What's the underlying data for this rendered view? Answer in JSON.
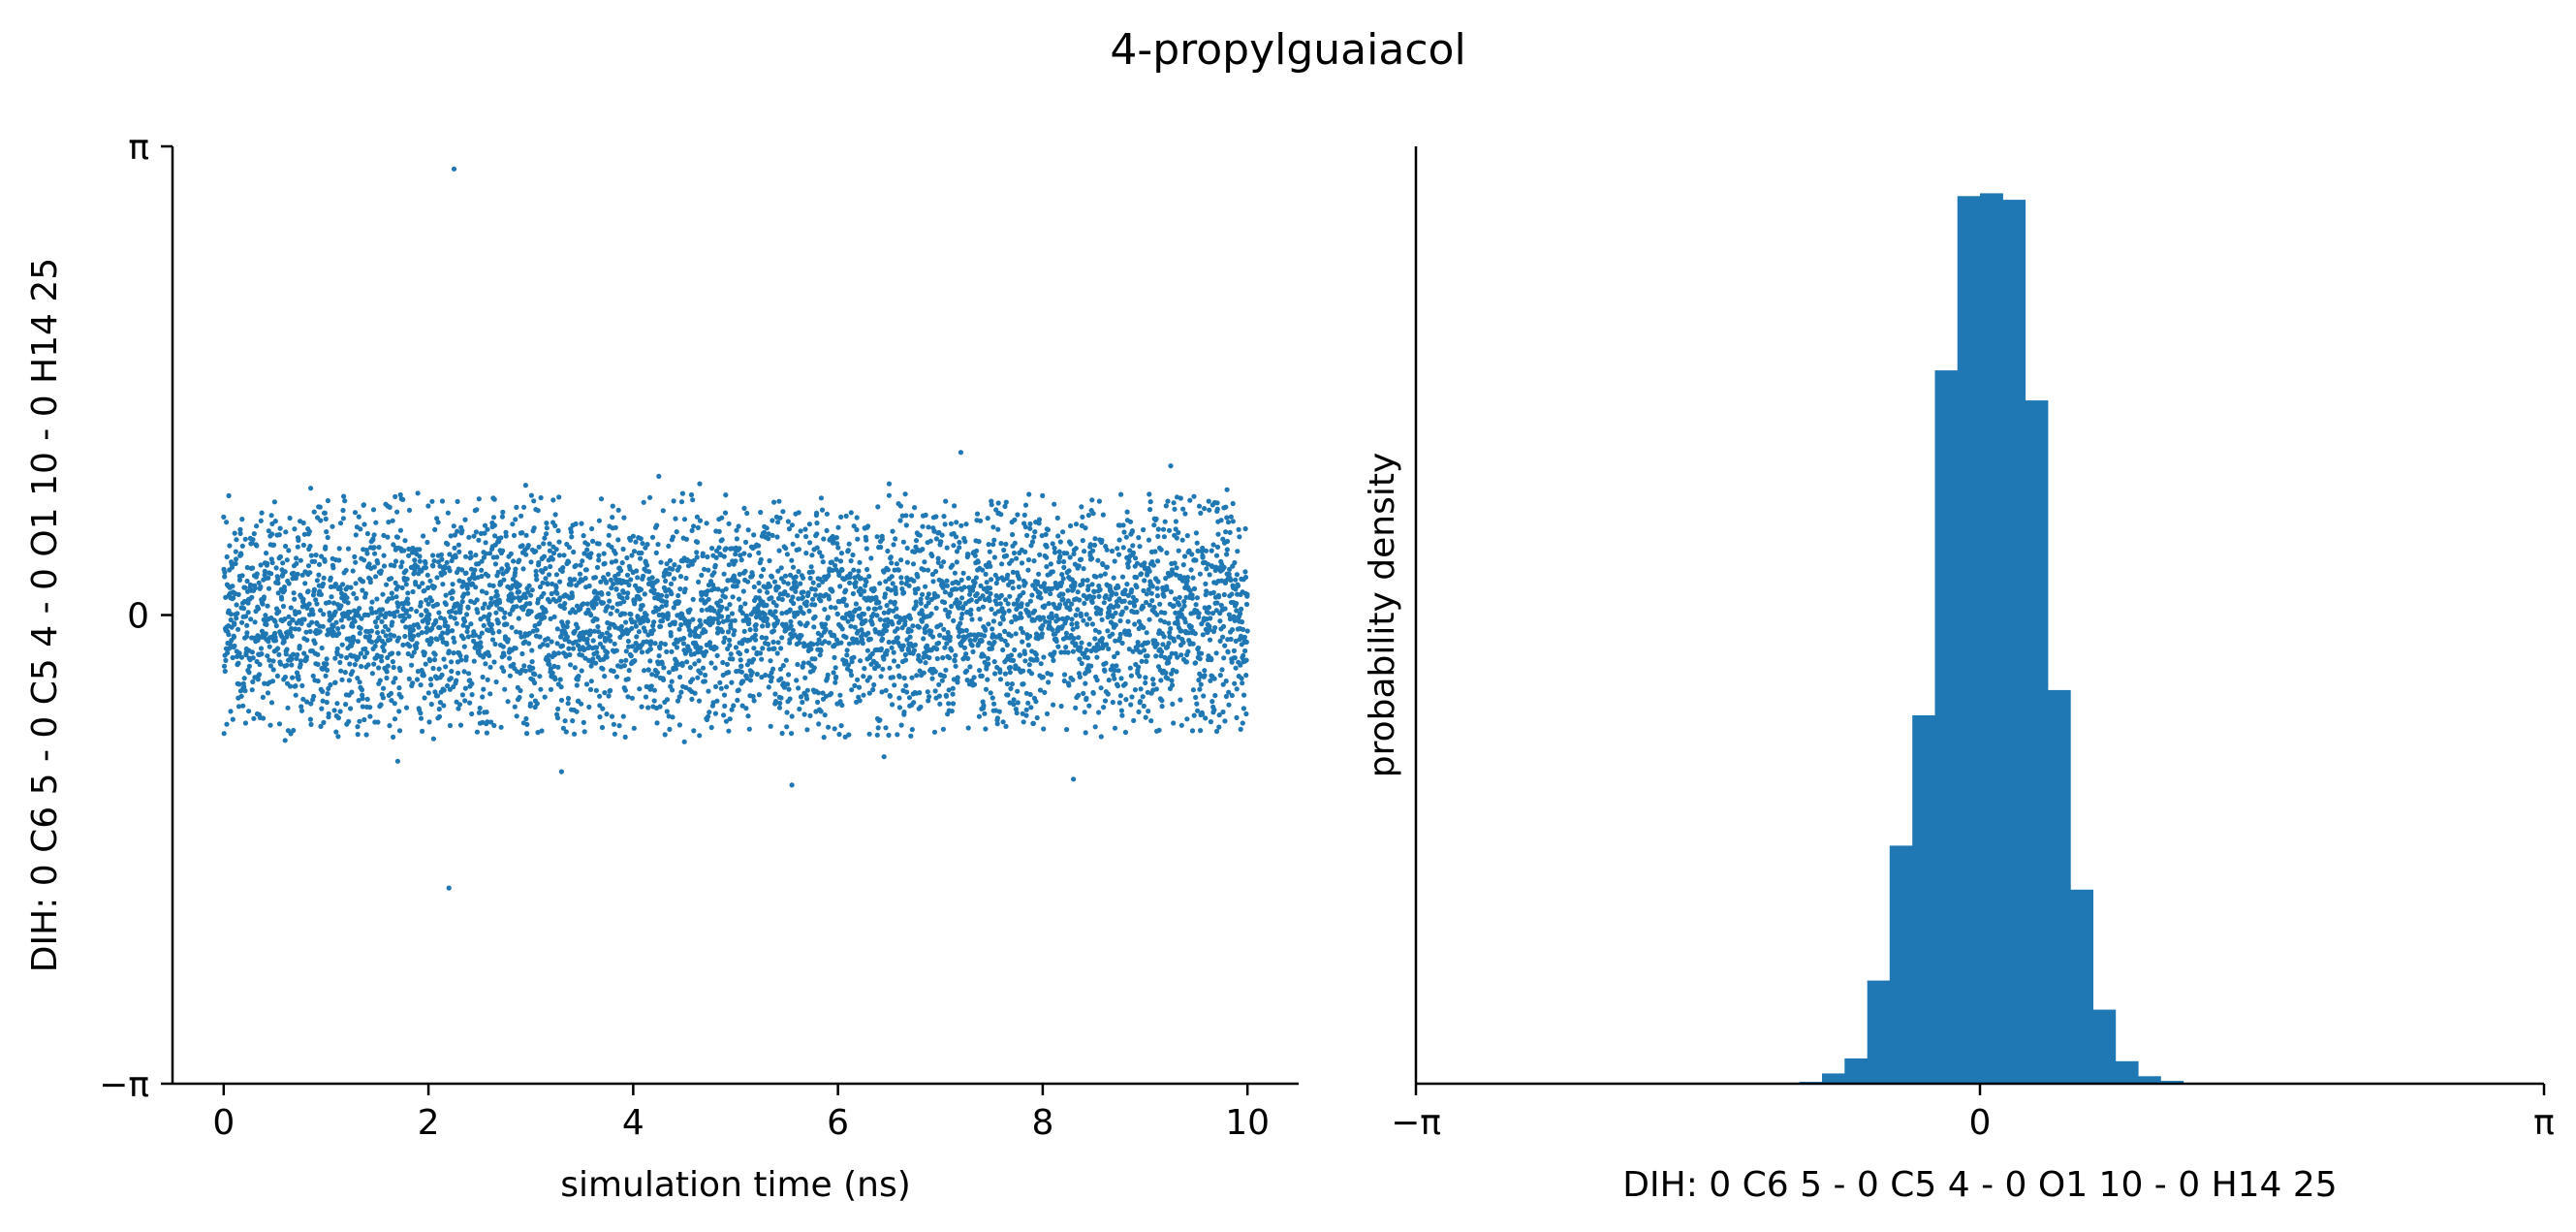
{
  "title": "4-propylguaiacol",
  "colors": {
    "series": "#1f77b4",
    "axis": "#000000"
  },
  "chart_data": [
    {
      "type": "scatter",
      "xlabel": "simulation time (ns)",
      "ylabel": "DIH:  0 C6 5 -  0 C5 4 -  0 O1 10 -  0 H14 25",
      "xlim": [
        -0.5,
        10.5
      ],
      "ylim": [
        -3.14159,
        3.14159
      ],
      "xticks": [
        0,
        2,
        4,
        6,
        8,
        10
      ],
      "xtick_labels": [
        "0",
        "2",
        "4",
        "6",
        "8",
        "10"
      ],
      "yticks": [
        -3.14159,
        0,
        3.14159
      ],
      "ytick_labels": [
        "−π",
        "0",
        "π"
      ],
      "grid": false,
      "spines": [
        "left",
        "bottom"
      ],
      "n_points": 5000,
      "distribution": {
        "center": 0.0,
        "std": 0.38,
        "x_range": [
          0,
          10
        ]
      },
      "outliers": [
        {
          "x": 2.25,
          "y": 2.99
        },
        {
          "x": 2.2,
          "y": -1.83
        },
        {
          "x": 5.55,
          "y": -1.14
        },
        {
          "x": 8.3,
          "y": -1.1
        },
        {
          "x": 3.3,
          "y": -1.05
        },
        {
          "x": 1.7,
          "y": -0.98
        },
        {
          "x": 7.2,
          "y": 1.09
        },
        {
          "x": 9.25,
          "y": 1.0
        },
        {
          "x": 4.25,
          "y": 0.93
        },
        {
          "x": 2.95,
          "y": 0.87
        },
        {
          "x": 6.5,
          "y": 0.88
        },
        {
          "x": 0.85,
          "y": 0.85
        },
        {
          "x": 4.65,
          "y": 0.88
        },
        {
          "x": 9.8,
          "y": 0.84
        },
        {
          "x": 0.05,
          "y": 0.8
        },
        {
          "x": 0.6,
          "y": -0.84
        },
        {
          "x": 2.05,
          "y": -0.83
        },
        {
          "x": 4.5,
          "y": -0.85
        },
        {
          "x": 6.45,
          "y": -0.95
        },
        {
          "x": 9.7,
          "y": -0.78
        }
      ]
    },
    {
      "type": "bar",
      "subtype": "histogram",
      "xlabel": "DIH:  0 C6 5 -  0 C5 4 -  0 O1 10 -  0 H14 25",
      "ylabel": "probability density",
      "xlim": [
        -3.14159,
        3.14159
      ],
      "xticks": [
        -3.14159,
        0,
        3.14159
      ],
      "xtick_labels": [
        "−π",
        "0",
        "π"
      ],
      "yticks_shown": false,
      "grid": false,
      "spines": [
        "left",
        "bottom"
      ],
      "bin_width": 0.12566,
      "bin_edges": [
        -1.005,
        -0.88,
        -0.754,
        -0.628,
        -0.503,
        -0.377,
        -0.251,
        -0.126,
        0.0,
        0.126,
        0.251,
        0.377,
        0.503,
        0.628,
        0.754,
        0.88,
        1.005,
        1.131
      ],
      "values": [
        0.002,
        0.011,
        0.027,
        0.11,
        0.254,
        0.393,
        0.761,
        0.947,
        0.95,
        0.943,
        0.729,
        0.42,
        0.207,
        0.079,
        0.024,
        0.008,
        0.003
      ],
      "ylim": [
        0,
        1.0
      ]
    }
  ]
}
